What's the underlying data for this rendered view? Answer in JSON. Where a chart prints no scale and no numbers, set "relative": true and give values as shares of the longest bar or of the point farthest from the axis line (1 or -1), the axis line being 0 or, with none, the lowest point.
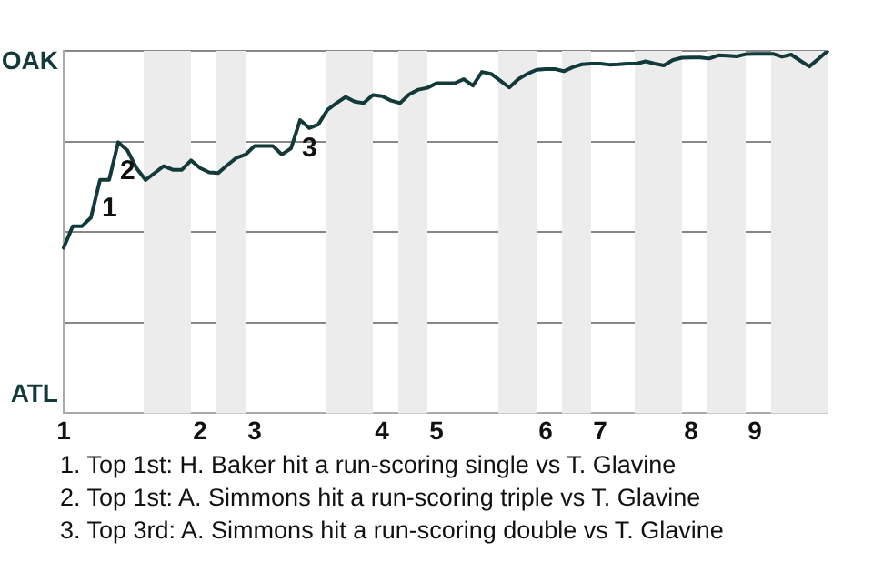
{
  "chart_data": {
    "type": "line",
    "relative": true,
    "categories": [
      "1",
      null,
      null,
      null,
      null,
      null,
      null,
      null,
      null,
      null,
      null,
      null,
      null,
      null,
      null,
      "2",
      null,
      null,
      null,
      null,
      null,
      "3",
      null,
      null,
      null,
      null,
      null,
      null,
      null,
      null,
      null,
      null,
      null,
      null,
      null,
      "4",
      null,
      null,
      null,
      null,
      null,
      "5",
      null,
      null,
      null,
      null,
      null,
      null,
      null,
      null,
      null,
      null,
      null,
      "6",
      null,
      null,
      null,
      null,
      null,
      "7",
      null,
      null,
      null,
      null,
      null,
      null,
      null,
      null,
      null,
      "8",
      null,
      null,
      null,
      null,
      null,
      null,
      "9",
      null,
      null,
      null,
      null,
      null,
      null,
      null,
      null
    ],
    "series": [
      {
        "color": "#123a3a",
        "values": [
          0.457,
          0.516,
          0.516,
          0.54,
          0.644,
          0.644,
          0.748,
          0.726,
          0.677,
          0.644,
          0.663,
          0.682,
          0.672,
          0.672,
          0.698,
          0.677,
          0.665,
          0.663,
          0.685,
          0.705,
          0.714,
          0.738,
          0.738,
          0.738,
          0.714,
          0.731,
          0.809,
          0.787,
          0.797,
          0.837,
          0.856,
          0.873,
          0.86,
          0.856,
          0.878,
          0.875,
          0.863,
          0.856,
          0.88,
          0.893,
          0.898,
          0.911,
          0.911,
          0.911,
          0.922,
          0.904,
          0.942,
          0.937,
          0.918,
          0.899,
          0.922,
          0.937,
          0.948,
          0.95,
          0.95,
          0.944,
          0.955,
          0.963,
          0.965,
          0.965,
          0.962,
          0.963,
          0.965,
          0.965,
          0.971,
          0.965,
          0.96,
          0.975,
          0.981,
          0.982,
          0.982,
          0.979,
          0.988,
          0.987,
          0.985,
          0.991,
          0.992,
          0.992,
          0.992,
          0.984,
          0.99,
          0.973,
          0.957,
          0.978,
          1
        ]
      }
    ],
    "grid": "y",
    "marker": "none",
    "annotations": [
      "OAK",
      "ATL",
      {
        "text": "1",
        "y": 0.644
      },
      {
        "text": "2",
        "y": 0.748
      },
      {
        "text": "3",
        "y": 0.809
      },
      "1. Top 1st: H. Baker hit a run-scoring single vs T. Glavine",
      "2. Top 1st: A. Simmons hit a run-scoring triple vs T. Glavine",
      "3. Top 3rd: A. Simmons hit a run-scoring double vs T. Glavine"
    ]
  }
}
